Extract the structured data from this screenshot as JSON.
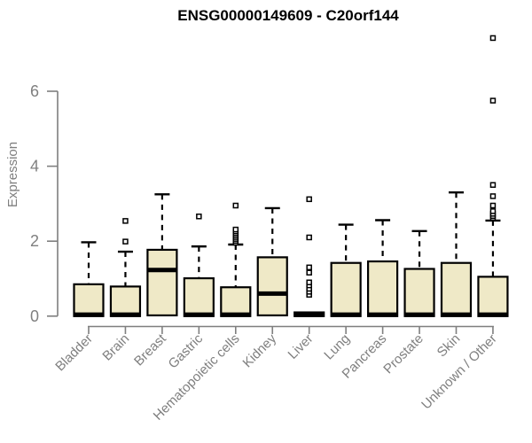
{
  "chart_data": {
    "type": "boxplot",
    "title": "ENSG00000149609 - C20orf144",
    "ylabel": "Expression",
    "xlabel": "",
    "yticks": [
      0,
      2,
      4,
      6
    ],
    "ylim": [
      0,
      7.6
    ],
    "legend": "none",
    "grid": false,
    "colors": {
      "box_fill": "#EFE9C7",
      "box_border": "#000000",
      "median": "#000000",
      "whisker": "#000000",
      "axis": "#7f7f7f",
      "tick_text": "#7f7f7f",
      "title_text": "#000000",
      "background": "#ffffff"
    },
    "categories": [
      "Bladder",
      "Brain",
      "Breast",
      "Gastric",
      "Hematopoietic cells",
      "Kidney",
      "Liver",
      "Lung",
      "Pancreas",
      "Prostate",
      "Skin",
      "Unknown / Other"
    ],
    "boxes": [
      {
        "category": "Bladder",
        "lo": 0,
        "q1": 0,
        "median": 0.04,
        "q3": 0.85,
        "hi": 1.97,
        "outliers": []
      },
      {
        "category": "Brain",
        "lo": 0,
        "q1": 0,
        "median": 0.04,
        "q3": 0.79,
        "hi": 1.72,
        "outliers": [
          1.99,
          2.54
        ]
      },
      {
        "category": "Breast",
        "lo": 0.02,
        "q1": 0.02,
        "median": 1.23,
        "q3": 1.77,
        "hi": 3.25,
        "outliers": []
      },
      {
        "category": "Gastric",
        "lo": 0,
        "q1": 0,
        "median": 0.04,
        "q3": 1.01,
        "hi": 1.86,
        "outliers": [
          2.66
        ]
      },
      {
        "category": "Hematopoietic cells",
        "lo": 0,
        "q1": 0,
        "median": 0.04,
        "q3": 0.77,
        "hi": 1.91,
        "outliers": [
          1.96,
          2.01,
          2.06,
          2.11,
          2.16,
          2.21,
          2.26,
          2.31,
          2.95
        ]
      },
      {
        "category": "Kidney",
        "lo": 0.02,
        "q1": 0.02,
        "median": 0.6,
        "q3": 1.57,
        "hi": 2.88,
        "outliers": []
      },
      {
        "category": "Liver",
        "lo": 0,
        "q1": 0,
        "median": 0.03,
        "q3": 0.1,
        "hi": 0.1,
        "outliers": [
          0.57,
          0.65,
          0.73,
          0.82,
          0.9,
          1.16,
          1.3,
          2.1,
          3.12
        ]
      },
      {
        "category": "Lung",
        "lo": 0,
        "q1": 0,
        "median": 0.04,
        "q3": 1.42,
        "hi": 2.44,
        "outliers": []
      },
      {
        "category": "Pancreas",
        "lo": 0,
        "q1": 0,
        "median": 0.04,
        "q3": 1.46,
        "hi": 2.56,
        "outliers": []
      },
      {
        "category": "Prostate",
        "lo": 0,
        "q1": 0,
        "median": 0.04,
        "q3": 1.26,
        "hi": 2.27,
        "outliers": []
      },
      {
        "category": "Skin",
        "lo": 0,
        "q1": 0,
        "median": 0.04,
        "q3": 1.42,
        "hi": 3.3,
        "outliers": []
      },
      {
        "category": "Unknown / Other",
        "lo": 0,
        "q1": 0,
        "median": 0.04,
        "q3": 1.05,
        "hi": 2.55,
        "outliers": [
          2.62,
          2.67,
          2.73,
          2.8,
          2.95,
          3.2,
          3.5,
          5.75,
          7.42
        ]
      }
    ]
  }
}
